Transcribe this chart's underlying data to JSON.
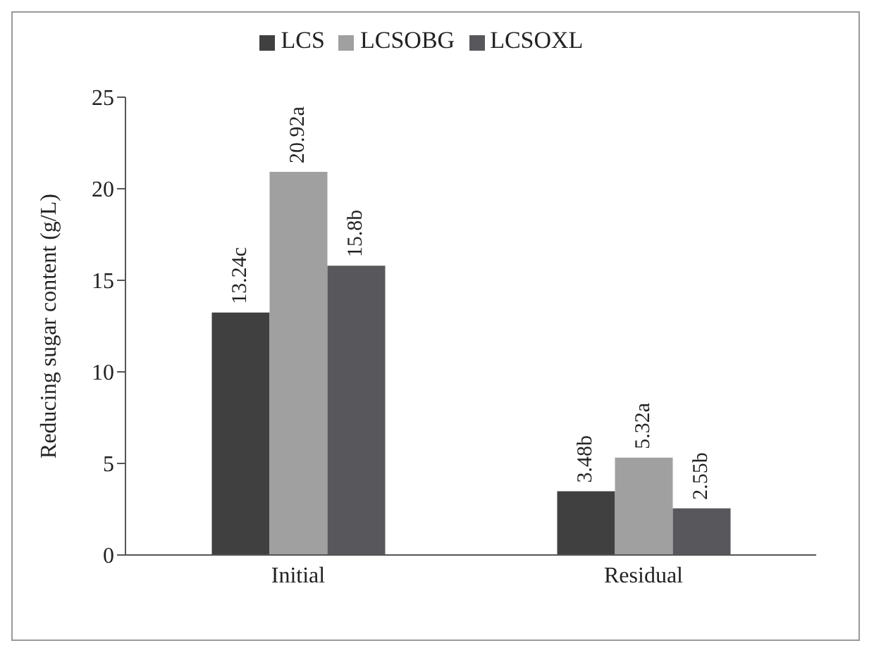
{
  "chart_data": {
    "type": "bar",
    "ylabel": "Reducing sugar content (g/L)",
    "categories": [
      "Initial",
      "Residual"
    ],
    "series": [
      {
        "name": "LCS",
        "color": "#404040",
        "values": [
          13.24,
          3.48
        ],
        "value_labels": [
          "13.24c",
          "3.48b"
        ]
      },
      {
        "name": "LCSOBG",
        "color": "#a0a0a0",
        "values": [
          20.92,
          5.32
        ],
        "value_labels": [
          "20.92a",
          "5.32a"
        ]
      },
      {
        "name": "LCSOXL",
        "color": "#58585c",
        "values": [
          15.8,
          2.55
        ],
        "value_labels": [
          "15.8b",
          "2.55b"
        ]
      }
    ],
    "ylim": [
      0,
      25
    ],
    "yticks": [
      0,
      5,
      10,
      15,
      20,
      25
    ],
    "grid": false,
    "legend": "top"
  }
}
